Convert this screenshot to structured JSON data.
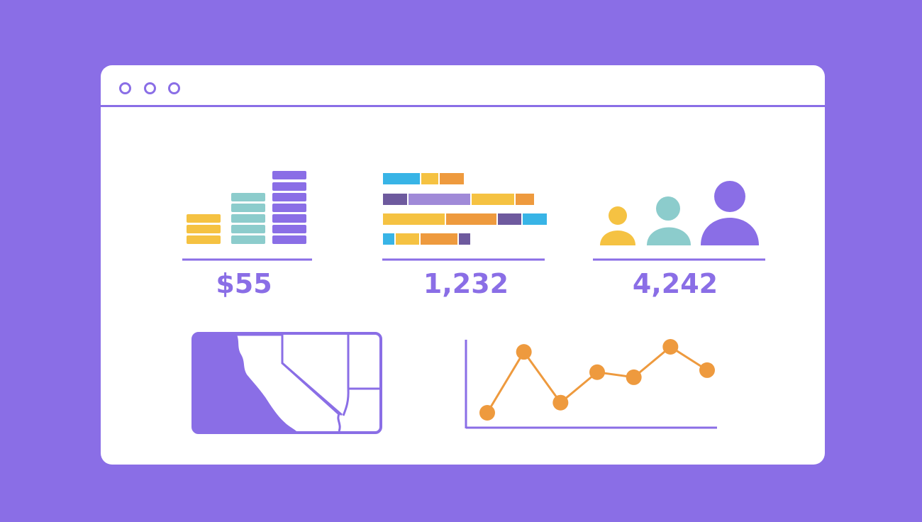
{
  "colors": {
    "background": "#8a6ee6",
    "window": "#ffffff",
    "purple": "#8a6ee6",
    "yellow": "#f5c242",
    "teal": "#8ccccc",
    "orange": "#ee9a3e",
    "blue": "#38b4e6",
    "dark_purple": "#6e5a9e",
    "light_purple": "#a08ad8"
  },
  "window": {
    "controls": [
      "circle-icon",
      "circle-icon",
      "circle-icon"
    ]
  },
  "stats": {
    "revenue": "$55",
    "count": "1,232",
    "users": "4,242"
  },
  "widgets": {
    "stacked_bars_icon": "stacked-bar-chart-icon",
    "gantt_icon": "horizontal-bar-chart-icon",
    "users_icon": "users-icon",
    "map_icon": "california-map-icon",
    "line_chart_icon": "line-chart-icon"
  },
  "chart_data": {
    "type": "line",
    "x": [
      1,
      2,
      3,
      4,
      5,
      6,
      7
    ],
    "y": [
      2,
      8,
      3,
      6,
      5.5,
      8.5,
      6.2
    ]
  }
}
